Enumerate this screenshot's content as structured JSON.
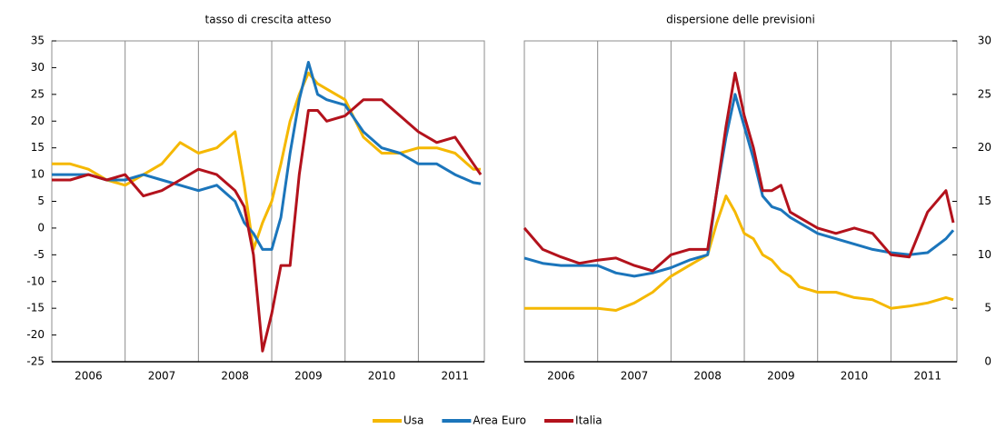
{
  "chart_data": [
    {
      "type": "line",
      "title": "tasso di crescita atteso",
      "x": [
        2006.0,
        2006.25,
        2006.5,
        2006.75,
        2007.0,
        2007.25,
        2007.5,
        2007.75,
        2008.0,
        2008.25,
        2008.5,
        2008.625,
        2008.75,
        2008.875,
        2009.0,
        2009.125,
        2009.25,
        2009.375,
        2009.5,
        2009.625,
        2009.75,
        2010.0,
        2010.25,
        2010.5,
        2010.75,
        2011.0,
        2011.25,
        2011.5,
        2011.75,
        2011.85
      ],
      "series": [
        {
          "name": "Usa",
          "color": "#f5b800",
          "values": [
            12,
            12,
            11,
            9,
            8,
            10,
            12,
            16,
            14,
            15,
            18,
            8,
            -4,
            1,
            5,
            12,
            20,
            25,
            29,
            27,
            26,
            24,
            17,
            14,
            14,
            15,
            15,
            14,
            11,
            11
          ]
        },
        {
          "name": "Area Euro",
          "color": "#1b75bb",
          "values": [
            10,
            10,
            10,
            9,
            9,
            10,
            9,
            8,
            7,
            8,
            5,
            1,
            -1,
            -4,
            -4,
            2,
            14,
            24,
            31,
            25,
            24,
            23,
            18,
            15,
            14,
            12,
            12,
            10,
            8.5,
            8.3
          ]
        },
        {
          "name": "Italia",
          "color": "#b3121c",
          "values": [
            9,
            9,
            10,
            9,
            10,
            6,
            7,
            9,
            11,
            10,
            7,
            4,
            -5,
            -23,
            -16,
            -7,
            -7,
            10,
            22,
            22,
            20,
            21,
            24,
            24,
            21,
            18,
            16,
            17,
            12,
            10
          ]
        }
      ],
      "xlim": [
        2006,
        2011.9
      ],
      "xticks": [
        {
          "value": 2006.5,
          "label": "2006"
        },
        {
          "value": 2007.5,
          "label": "2007"
        },
        {
          "value": 2008.5,
          "label": "2008"
        },
        {
          "value": 2009.5,
          "label": "2009"
        },
        {
          "value": 2010.5,
          "label": "2010"
        },
        {
          "value": 2011.5,
          "label": "2011"
        }
      ],
      "xgrid": [
        2007,
        2008,
        2009,
        2010,
        2011
      ],
      "ylim": [
        -25,
        35
      ],
      "yticks": [
        -25,
        -20,
        -15,
        -10,
        -5,
        0,
        5,
        10,
        15,
        20,
        25,
        30,
        35
      ],
      "yaxis_side": "left"
    },
    {
      "type": "line",
      "title": "dispersione delle previsioni",
      "x": [
        2006.0,
        2006.25,
        2006.5,
        2006.75,
        2007.0,
        2007.25,
        2007.5,
        2007.75,
        2008.0,
        2008.25,
        2008.5,
        2008.625,
        2008.75,
        2008.875,
        2009.0,
        2009.125,
        2009.25,
        2009.375,
        2009.5,
        2009.625,
        2009.75,
        2010.0,
        2010.25,
        2010.5,
        2010.75,
        2011.0,
        2011.25,
        2011.5,
        2011.75,
        2011.85
      ],
      "series": [
        {
          "color": "#f5b800",
          "values": [
            5,
            5,
            5,
            5,
            5,
            4.8,
            5.5,
            6.5,
            8,
            9,
            10,
            13,
            15.5,
            14,
            12,
            11.5,
            10,
            9.5,
            8.5,
            8,
            7,
            6.5,
            6.5,
            6,
            5.8,
            5,
            5.2,
            5.5,
            6,
            5.8
          ]
        },
        {
          "color": "#1b75bb",
          "values": [
            9.7,
            9.2,
            9,
            9,
            9,
            8.3,
            8,
            8.3,
            8.8,
            9.5,
            10,
            16,
            21,
            25,
            22,
            19,
            15.5,
            14.5,
            14.2,
            13.5,
            13,
            12,
            11.5,
            11,
            10.5,
            10.2,
            10,
            10.2,
            11.5,
            12.3
          ]
        },
        {
          "color": "#b3121c",
          "values": [
            12.5,
            10.5,
            9.8,
            9.2,
            9.5,
            9.7,
            9,
            8.5,
            10,
            10.5,
            10.5,
            16,
            22,
            27,
            23,
            20,
            16,
            16,
            16.5,
            14,
            13.5,
            12.5,
            12,
            12.5,
            12,
            10,
            9.8,
            14,
            16,
            13
          ]
        }
      ],
      "xlim": [
        2006,
        2011.9
      ],
      "xticks": [
        {
          "value": 2006.5,
          "label": "2006"
        },
        {
          "value": 2007.5,
          "label": "2007"
        },
        {
          "value": 2008.5,
          "label": "2008"
        },
        {
          "value": 2009.5,
          "label": "2009"
        },
        {
          "value": 2010.5,
          "label": "2010"
        },
        {
          "value": 2011.5,
          "label": "2011"
        }
      ],
      "xgrid": [
        2007,
        2008,
        2009,
        2010,
        2011
      ],
      "ylim": [
        0,
        30
      ],
      "yticks": [
        0,
        5,
        10,
        15,
        20,
        25,
        30
      ],
      "yaxis_side": "right"
    }
  ]
}
